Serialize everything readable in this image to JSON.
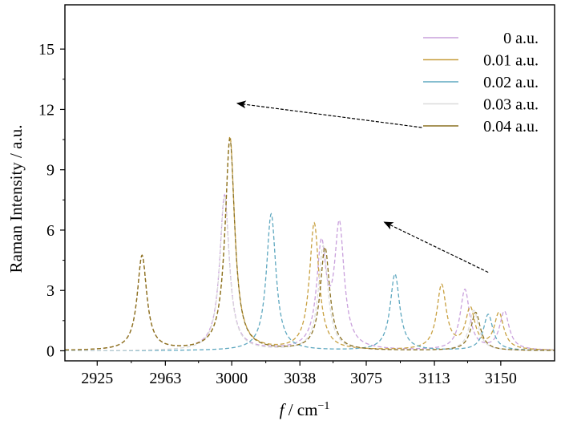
{
  "chart_data": {
    "type": "line",
    "xlabel_italic": "f",
    "xlabel_rest": " / cm",
    "xlabel_sup": "−1",
    "ylabel": "Raman Intensity / a.u.",
    "xlim": [
      2907,
      3180
    ],
    "ylim": [
      -0.5,
      17.2
    ],
    "xticks": [
      2925,
      2963,
      3000,
      3038,
      3075,
      3113,
      3150
    ],
    "yticks": [
      0,
      3,
      6,
      9,
      12,
      15
    ],
    "legend_position": "top-right",
    "line_style": "dashed",
    "lorentz_gamma": 3.2,
    "series": [
      {
        "name": "0 a.u.",
        "color": "#c9a0dc",
        "peaks": [
          [
            2950,
            4.7
          ],
          [
            2996,
            7.7
          ],
          [
            3050,
            5.0
          ],
          [
            3060,
            6.0
          ],
          [
            3130,
            3.0
          ],
          [
            3152,
            1.9
          ]
        ]
      },
      {
        "name": "0.01 a.u.",
        "color": "#c8a040",
        "peaks": [
          [
            2950,
            4.7
          ],
          [
            2999,
            10.6
          ],
          [
            3046,
            6.3
          ],
          [
            3117,
            3.2
          ],
          [
            3133,
            2.0
          ],
          [
            3149,
            1.8
          ]
        ]
      },
      {
        "name": "0.02 a.u.",
        "color": "#5fa8c0",
        "peaks": [
          [
            3022,
            6.8
          ],
          [
            3091,
            3.8
          ],
          [
            3143,
            1.8
          ]
        ]
      },
      {
        "name": "0.03 a.u.",
        "color": "#dcdcdc",
        "peaks": [
          [
            2996,
            7.6
          ],
          [
            3051,
            5.2
          ],
          [
            3135,
            2.0
          ]
        ]
      },
      {
        "name": "0.04 a.u.",
        "color": "#8a7020",
        "peaks": [
          [
            2950,
            4.7
          ],
          [
            2999,
            10.5
          ],
          [
            3052,
            5.1
          ],
          [
            3136,
            1.9
          ]
        ]
      }
    ],
    "annotations": [
      {
        "type": "arrow",
        "from": [
          3106,
          11.1
        ],
        "to": [
          3003,
          12.3
        ]
      },
      {
        "type": "arrow",
        "from": [
          3143,
          3.9
        ],
        "to": [
          3085,
          6.4
        ]
      }
    ]
  }
}
